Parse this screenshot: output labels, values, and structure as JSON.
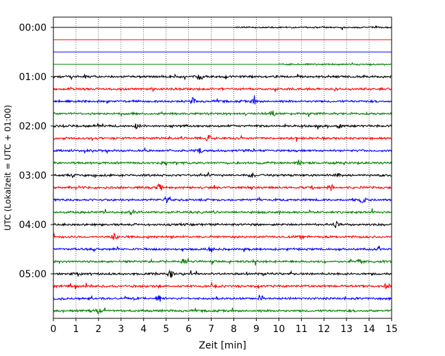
{
  "chart_data": {
    "type": "line",
    "title": "",
    "xlabel": "Zeit  [min]",
    "ylabel": "UTC (Lokalzeit = UTC + 01:00)",
    "xlim": [
      0,
      15
    ],
    "x_ticks": [
      "0",
      "1",
      "2",
      "3",
      "4",
      "5",
      "6",
      "7",
      "8",
      "9",
      "10",
      "11",
      "12",
      "13",
      "14",
      "15"
    ],
    "y_ticks": [
      "00:00",
      "01:00",
      "02:00",
      "03:00",
      "04:00",
      "05:00"
    ],
    "grid": "vertical dotted at each minute",
    "row_interval_minutes": 15,
    "row_colors": [
      "#000000",
      "#ff0000",
      "#0000ff",
      "#008000"
    ],
    "traces": [
      {
        "start": "00:00",
        "color": "#000000",
        "data_from_min": 8.0,
        "noise": "low"
      },
      {
        "start": "00:15",
        "color": "#ff0000",
        "data_from_min": 15.0,
        "noise": "none"
      },
      {
        "start": "00:30",
        "color": "#0000ff",
        "data_from_min": 15.0,
        "noise": "none"
      },
      {
        "start": "00:45",
        "color": "#008000",
        "data_from_min": 10.0,
        "noise": "low"
      },
      {
        "start": "01:00",
        "color": "#000000",
        "data_from_min": 0,
        "noise": "medium",
        "events_min": [
          6.5
        ]
      },
      {
        "start": "01:15",
        "color": "#ff0000",
        "data_from_min": 0,
        "noise": "medium",
        "events_min": []
      },
      {
        "start": "01:30",
        "color": "#0000ff",
        "data_from_min": 0,
        "noise": "medium",
        "events_min": [
          8.9,
          6.2
        ]
      },
      {
        "start": "01:45",
        "color": "#008000",
        "data_from_min": 0,
        "noise": "medium",
        "events_min": [
          9.7
        ]
      },
      {
        "start": "02:00",
        "color": "#000000",
        "data_from_min": 0,
        "noise": "medium",
        "events_min": [
          3.7,
          12.7
        ]
      },
      {
        "start": "02:15",
        "color": "#ff0000",
        "data_from_min": 0,
        "noise": "medium",
        "events_min": [
          6.9
        ]
      },
      {
        "start": "02:30",
        "color": "#0000ff",
        "data_from_min": 0,
        "noise": "medium",
        "events_min": [
          6.5
        ]
      },
      {
        "start": "02:45",
        "color": "#008000",
        "data_from_min": 0,
        "noise": "medium",
        "events_min": [
          10.9
        ]
      },
      {
        "start": "03:00",
        "color": "#000000",
        "data_from_min": 0,
        "noise": "medium",
        "events_min": [
          8.8,
          12.6
        ]
      },
      {
        "start": "03:15",
        "color": "#ff0000",
        "data_from_min": 0,
        "noise": "medium",
        "events_min": [
          12.3,
          4.7
        ]
      },
      {
        "start": "03:30",
        "color": "#0000ff",
        "data_from_min": 0,
        "noise": "medium",
        "events_min": [
          5.0,
          13.7
        ]
      },
      {
        "start": "03:45",
        "color": "#008000",
        "data_from_min": 0,
        "noise": "medium",
        "events_min": [
          3.5
        ]
      },
      {
        "start": "04:00",
        "color": "#000000",
        "data_from_min": 0,
        "noise": "medium",
        "events_min": [
          12.5
        ]
      },
      {
        "start": "04:15",
        "color": "#ff0000",
        "data_from_min": 0,
        "noise": "medium",
        "events_min": [
          2.7
        ]
      },
      {
        "start": "04:30",
        "color": "#0000ff",
        "data_from_min": 0,
        "noise": "medium",
        "events_min": [
          7.0
        ]
      },
      {
        "start": "04:45",
        "color": "#008000",
        "data_from_min": 0,
        "noise": "medium",
        "events_min": [
          5.8,
          13.6
        ]
      },
      {
        "start": "05:00",
        "color": "#000000",
        "data_from_min": 0,
        "noise": "medium",
        "events_min": [
          5.2
        ]
      },
      {
        "start": "05:15",
        "color": "#ff0000",
        "data_from_min": 0,
        "noise": "medium",
        "events_min": [
          14.8
        ]
      },
      {
        "start": "05:30",
        "color": "#0000ff",
        "data_from_min": 0,
        "noise": "medium",
        "events_min": [
          4.7,
          9.2
        ]
      },
      {
        "start": "05:45",
        "color": "#008000",
        "data_from_min": 0,
        "noise": "medium",
        "events_min": [
          2.0
        ]
      }
    ]
  }
}
